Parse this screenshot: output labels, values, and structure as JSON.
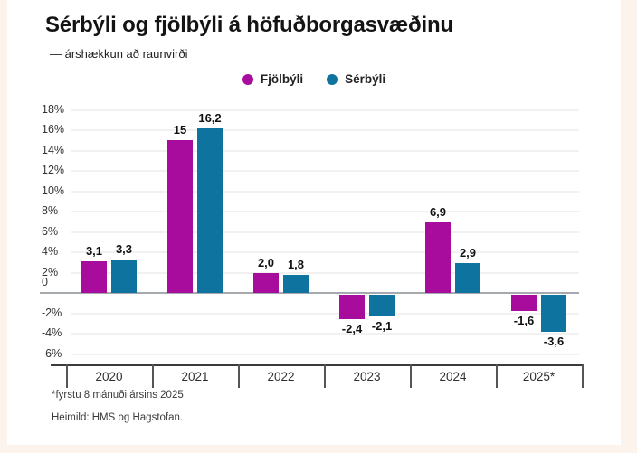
{
  "page": {
    "background_color": "#fdf3ed",
    "card_color": "#ffffff"
  },
  "header": {
    "title": "Sérbýli og fjölbýli á höfuðborgasvæðinu",
    "subtitle": "— árshækkun að raunvirði"
  },
  "legend": {
    "items": [
      {
        "label": "Fjölbýli",
        "color": "#a70c9c"
      },
      {
        "label": "Sérbýli",
        "color": "#0e739f"
      }
    ]
  },
  "chart_data": {
    "type": "bar",
    "title": "Sérbýli og fjölbýli á höfuðborgasvæðinu",
    "subtitle": "— árshækkun að raunvirði",
    "categories": [
      "2020",
      "2021",
      "2022",
      "2023",
      "2024",
      "2025*"
    ],
    "series": [
      {
        "name": "Fjölbýli",
        "color": "#a70c9c",
        "values": [
          3.1,
          15,
          2.0,
          -2.4,
          6.9,
          -1.6
        ],
        "value_labels": [
          "3,1",
          "15",
          "2,0",
          "-2,4",
          "6,9",
          "-1,6"
        ]
      },
      {
        "name": "Sérbýli",
        "color": "#0e739f",
        "values": [
          3.3,
          16.2,
          1.8,
          -2.1,
          2.9,
          -3.6
        ],
        "value_labels": [
          "3,3",
          "16,2",
          "1,8",
          "-2,1",
          "2,9",
          "-3,6"
        ]
      }
    ],
    "xlabel": "",
    "ylabel": "",
    "ylim": [
      -6,
      18
    ],
    "y_tick_step": 2,
    "y_tick_labels": [
      "18%",
      "16%",
      "14%",
      "12%",
      "10%",
      "8%",
      "6%",
      "4%",
      "2%",
      "0",
      "-2%",
      "-4%",
      "-6%"
    ],
    "grid": "horizontal",
    "legend_position": "top"
  },
  "footnotes": {
    "note": "*fyrstu 8 mánuði ársins 2025",
    "source": "Heimild: HMS og Hagstofan."
  }
}
